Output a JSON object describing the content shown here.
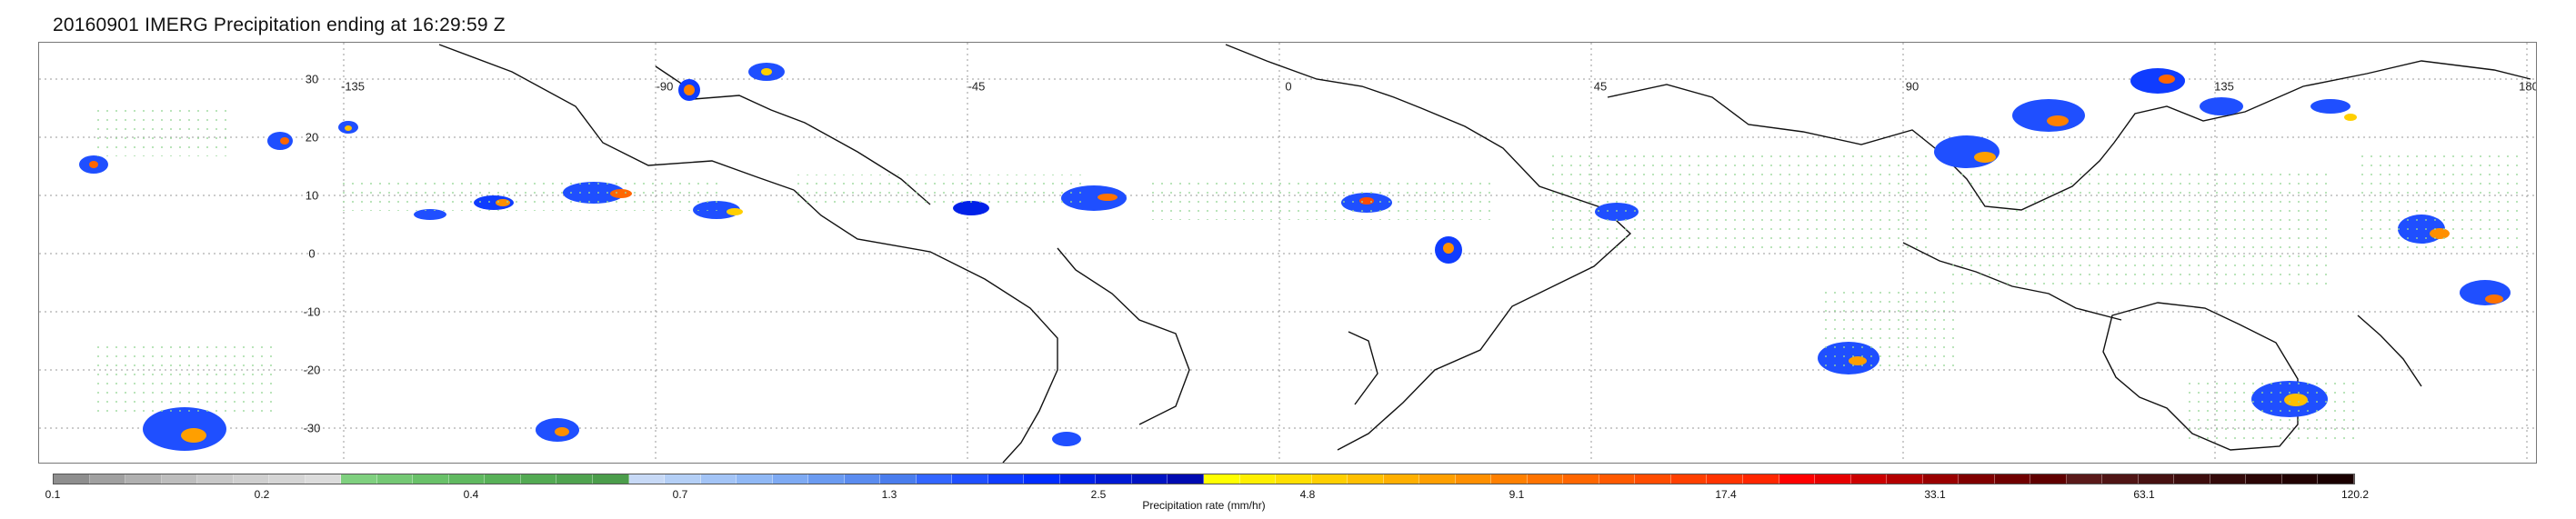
{
  "title": "20160901 IMERG Precipitation ending at 16:29:59 Z",
  "map": {
    "longitude_labels": [
      "-135",
      "-90",
      "-45",
      "0",
      "45",
      "90",
      "135",
      "180"
    ],
    "latitude_labels": [
      "30",
      "20",
      "10",
      "0",
      "-10",
      "-20",
      "-30"
    ]
  },
  "colorbar": {
    "label": "Precipitation rate (mm/hr)",
    "tick_labels": [
      "0.1",
      "0.2",
      "0.4",
      "0.7",
      "1.3",
      "2.5",
      "4.8",
      "9.1",
      "17.4",
      "33.1",
      "63.1",
      "120.2"
    ],
    "colors": [
      "#8e8e8e",
      "#a0a0a0",
      "#b0b0b0",
      "#bdbdbd",
      "#c8c8c8",
      "#cfcfcf",
      "#d5d5d5",
      "#dcdcdc",
      "#7fd07f",
      "#74c874",
      "#69c169",
      "#60b960",
      "#58b158",
      "#53aa53",
      "#4fa34f",
      "#4b9d4b",
      "#c7d9f6",
      "#b4cff6",
      "#a3c4f6",
      "#90b8f5",
      "#7eaaf3",
      "#6b9bf1",
      "#5b8cef",
      "#4a7ded",
      "#3366ff",
      "#1f4fff",
      "#0f3cff",
      "#002cff",
      "#0021e8",
      "#0019d4",
      "#0013c2",
      "#000ab0",
      "#ffff00",
      "#ffef00",
      "#ffdf00",
      "#ffcf00",
      "#ffbf00",
      "#ffaf00",
      "#ff9f00",
      "#ff8f00",
      "#ff8000",
      "#ff7300",
      "#ff6600",
      "#ff5900",
      "#ff4c00",
      "#ff3f00",
      "#ff3300",
      "#ff2600",
      "#ff0000",
      "#e60000",
      "#cc0000",
      "#b30000",
      "#990000",
      "#800000",
      "#700000",
      "#600000",
      "#5a1a1a",
      "#501515",
      "#471111",
      "#3d0d0d",
      "#340909",
      "#2b0505",
      "#220202",
      "#1a0000"
    ]
  }
}
